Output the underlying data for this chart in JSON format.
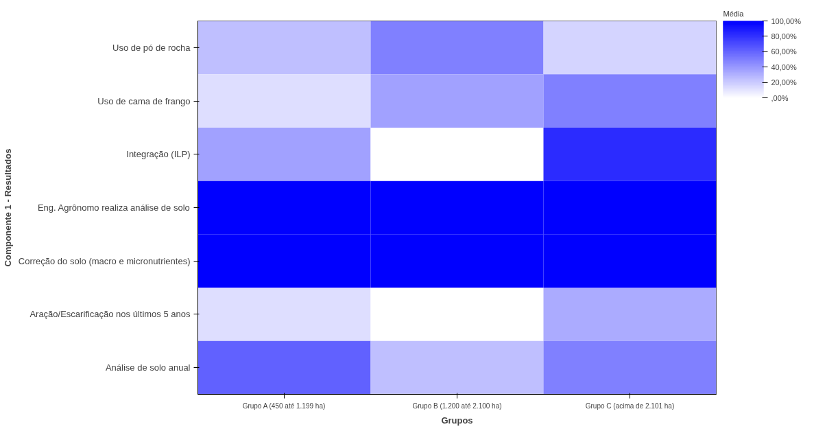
{
  "chart_data": {
    "type": "heatmap",
    "xlabel": "Grupos",
    "ylabel": "Componente 1 - Resultados",
    "legend_title": "Média",
    "categories": [
      "Grupo A (450 até 1.199 ha)",
      "Grupo B (1.200 até 2.100 ha)",
      "Grupo C (acima de 2.101 ha)"
    ],
    "y_categories": [
      "Uso de pó de rocha",
      "Uso de cama de frango",
      "Integração (ILP)",
      "Eng. Agrônomo realiza análise de solo",
      "Correção do solo (macro e micronutrientes)",
      "Aração/Escarificação nos últimos 5 anos",
      "Análise de solo anual"
    ],
    "cells": [
      [
        25,
        50,
        17
      ],
      [
        13,
        37,
        50
      ],
      [
        37,
        0,
        83
      ],
      [
        100,
        100,
        100
      ],
      [
        100,
        100,
        100
      ],
      [
        13,
        0,
        33
      ],
      [
        62,
        25,
        50
      ]
    ],
    "clim": [
      0,
      100
    ],
    "cticks": [
      {
        "value": 100,
        "label": "100,00%"
      },
      {
        "value": 80,
        "label": "80,00%"
      },
      {
        "value": 60,
        "label": "60,00%"
      },
      {
        "value": 40,
        "label": "40,00%"
      },
      {
        "value": 20,
        "label": "20,00%"
      },
      {
        "value": 0,
        "label": ",00%"
      }
    ]
  }
}
